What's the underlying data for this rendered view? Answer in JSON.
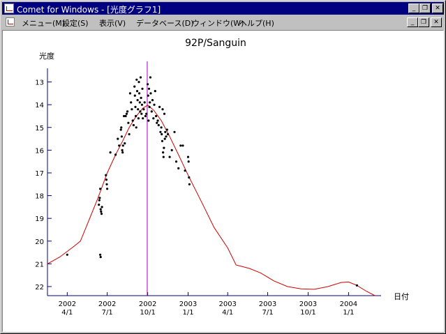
{
  "window": {
    "title": "Comet for Windows - [光度グラフ1]",
    "buttons": {
      "minimize": "_",
      "restore": "❐",
      "close": "✕"
    }
  },
  "menu": {
    "items": [
      {
        "label": "メニュー(M)"
      },
      {
        "label": "設定(S)"
      },
      {
        "label": "表示(V)"
      },
      {
        "label": "データベース(D)"
      },
      {
        "label": "ウィンドウ(W)"
      },
      {
        "label": "ヘルプ(H)"
      }
    ]
  },
  "chart_data": {
    "type": "scatter",
    "title": "92P/Sanguin",
    "ylabel": "光度",
    "xlabel": "日付",
    "x_domain": [
      "2002-02-15",
      "2004-03-15"
    ],
    "ylim": [
      22.4,
      12.4
    ],
    "y_inverted": true,
    "y_ticks": [
      13,
      14,
      15,
      16,
      17,
      18,
      19,
      20,
      21,
      22
    ],
    "x_ticks": [
      {
        "date": "2002-04-01",
        "year": "2002",
        "md": "4/1"
      },
      {
        "date": "2002-07-01",
        "year": "2002",
        "md": "7/1"
      },
      {
        "date": "2002-10-01",
        "year": "2002",
        "md": "10/1"
      },
      {
        "date": "2003-01-01",
        "year": "2003",
        "md": "1/1"
      },
      {
        "date": "2003-04-01",
        "year": "2003",
        "md": "4/1"
      },
      {
        "date": "2003-07-01",
        "year": "2003",
        "md": "7/1"
      },
      {
        "date": "2003-10-01",
        "year": "2003",
        "md": "10/1"
      },
      {
        "date": "2004-01-01",
        "year": "2004",
        "md": "1/1"
      }
    ],
    "perihelion_date": "2002-09-30",
    "predicted_curve": [
      [
        "2002-02-15",
        21.0
      ],
      [
        "2002-03-15",
        20.7
      ],
      [
        "2002-04-15",
        20.25
      ],
      [
        "2002-05-01",
        20.0
      ],
      [
        "2002-05-20",
        19.1
      ],
      [
        "2002-06-10",
        18.1
      ],
      [
        "2002-07-01",
        17.0
      ],
      [
        "2002-07-20",
        16.2
      ],
      [
        "2002-08-05",
        15.6
      ],
      [
        "2002-08-20",
        15.0
      ],
      [
        "2002-09-05",
        14.5
      ],
      [
        "2002-09-20",
        14.15
      ],
      [
        "2002-10-01",
        14.02
      ],
      [
        "2002-10-15",
        14.25
      ],
      [
        "2002-11-01",
        14.7
      ],
      [
        "2002-11-20",
        15.4
      ],
      [
        "2002-12-10",
        16.2
      ],
      [
        "2003-01-01",
        17.1
      ],
      [
        "2003-02-01",
        18.3
      ],
      [
        "2003-03-01",
        19.4
      ],
      [
        "2003-04-01",
        20.3
      ],
      [
        "2003-04-20",
        21.05
      ],
      [
        "2003-05-20",
        21.2
      ],
      [
        "2003-06-15",
        21.4
      ],
      [
        "2003-07-15",
        21.75
      ],
      [
        "2003-08-15",
        22.0
      ],
      [
        "2003-09-15",
        22.1
      ],
      [
        "2003-10-15",
        22.12
      ],
      [
        "2003-11-15",
        22.0
      ],
      [
        "2003-12-15",
        21.82
      ],
      [
        "2004-01-01",
        21.8
      ],
      [
        "2004-01-20",
        21.95
      ],
      [
        "2004-02-10",
        22.2
      ],
      [
        "2004-03-01",
        22.4
      ]
    ],
    "observations": [
      [
        "2002-04-01",
        20.6
      ],
      [
        "2002-06-15",
        20.6
      ],
      [
        "2002-06-16",
        20.7
      ],
      [
        "2002-06-12",
        18.4
      ],
      [
        "2002-06-13",
        18.2
      ],
      [
        "2002-06-14",
        18.1
      ],
      [
        "2002-06-15",
        17.7
      ],
      [
        "2002-06-16",
        18.6
      ],
      [
        "2002-06-17",
        18.7
      ],
      [
        "2002-06-18",
        18.8
      ],
      [
        "2002-06-19",
        18.5
      ],
      [
        "2002-06-28",
        17.1
      ],
      [
        "2002-06-29",
        17.3
      ],
      [
        "2002-06-30",
        17.5
      ],
      [
        "2002-07-01",
        17.7
      ],
      [
        "2002-07-08",
        16.1
      ],
      [
        "2002-07-20",
        16.2
      ],
      [
        "2002-07-25",
        15.5
      ],
      [
        "2002-07-28",
        15.8
      ],
      [
        "2002-08-01",
        15.1
      ],
      [
        "2002-08-02",
        15.0
      ],
      [
        "2002-08-03",
        15.4
      ],
      [
        "2002-08-04",
        16.0
      ],
      [
        "2002-08-05",
        16.1
      ],
      [
        "2002-08-06",
        15.8
      ],
      [
        "2002-08-08",
        14.5
      ],
      [
        "2002-08-10",
        15.7
      ],
      [
        "2002-08-12",
        14.5
      ],
      [
        "2002-08-14",
        14.4
      ],
      [
        "2002-08-16",
        14.3
      ],
      [
        "2002-08-18",
        14.8
      ],
      [
        "2002-08-20",
        15.3
      ],
      [
        "2002-08-22",
        13.5
      ],
      [
        "2002-08-24",
        13.9
      ],
      [
        "2002-08-26",
        14.2
      ],
      [
        "2002-08-28",
        14.7
      ],
      [
        "2002-08-30",
        14.9
      ],
      [
        "2002-09-01",
        13.2
      ],
      [
        "2002-09-02",
        13.6
      ],
      [
        "2002-09-03",
        14.1
      ],
      [
        "2002-09-04",
        14.5
      ],
      [
        "2002-09-05",
        15.0
      ],
      [
        "2002-09-06",
        12.9
      ],
      [
        "2002-09-07",
        13.4
      ],
      [
        "2002-09-08",
        13.8
      ],
      [
        "2002-09-09",
        14.2
      ],
      [
        "2002-09-10",
        14.6
      ],
      [
        "2002-09-11",
        13.0
      ],
      [
        "2002-09-12",
        13.5
      ],
      [
        "2002-09-13",
        13.9
      ],
      [
        "2002-09-14",
        14.3
      ],
      [
        "2002-09-15",
        12.8
      ],
      [
        "2002-09-16",
        13.7
      ],
      [
        "2002-09-17",
        14.4
      ],
      [
        "2002-09-18",
        14.0
      ],
      [
        "2002-09-19",
        13.3
      ],
      [
        "2002-09-20",
        14.6
      ],
      [
        "2002-09-22",
        14.2
      ],
      [
        "2002-09-24",
        13.9
      ],
      [
        "2002-09-26",
        14.5
      ],
      [
        "2002-09-28",
        14.4
      ],
      [
        "2002-10-01",
        13.1
      ],
      [
        "2002-10-02",
        13.6
      ],
      [
        "2002-10-03",
        14.7
      ],
      [
        "2002-10-04",
        13.3
      ],
      [
        "2002-10-05",
        14.1
      ],
      [
        "2002-10-06",
        13.9
      ],
      [
        "2002-10-07",
        12.8
      ],
      [
        "2002-10-08",
        13.5
      ],
      [
        "2002-10-10",
        14.3
      ],
      [
        "2002-10-12",
        13.8
      ],
      [
        "2002-10-14",
        14.6
      ],
      [
        "2002-10-16",
        14.0
      ],
      [
        "2002-10-18",
        13.4
      ],
      [
        "2002-10-20",
        14.5
      ],
      [
        "2002-10-22",
        14.8
      ],
      [
        "2002-10-24",
        14.7
      ],
      [
        "2002-10-26",
        14.9
      ],
      [
        "2002-10-28",
        14.1
      ],
      [
        "2002-10-30",
        15.2
      ],
      [
        "2002-11-01",
        15.0
      ],
      [
        "2002-11-02",
        15.3
      ],
      [
        "2002-11-03",
        15.6
      ],
      [
        "2002-11-04",
        14.2
      ],
      [
        "2002-11-05",
        16.1
      ],
      [
        "2002-11-06",
        16.3
      ],
      [
        "2002-11-07",
        15.9
      ],
      [
        "2002-11-08",
        14.4
      ],
      [
        "2002-11-09",
        15.5
      ],
      [
        "2002-11-10",
        15.2
      ],
      [
        "2002-11-12",
        15.4
      ],
      [
        "2002-11-14",
        15.1
      ],
      [
        "2002-11-16",
        15.3
      ],
      [
        "2002-11-20",
        16.3
      ],
      [
        "2002-11-25",
        16.0
      ],
      [
        "2002-12-01",
        15.2
      ],
      [
        "2002-12-05",
        16.5
      ],
      [
        "2002-12-10",
        16.8
      ],
      [
        "2002-12-15",
        15.8
      ],
      [
        "2002-12-20",
        15.8
      ],
      [
        "2002-12-25",
        16.9
      ],
      [
        "2003-01-01",
        16.3
      ],
      [
        "2003-01-02",
        16.5
      ],
      [
        "2003-01-03",
        17.2
      ],
      [
        "2003-01-04",
        17.5
      ],
      [
        "2004-01-20",
        21.95
      ]
    ]
  }
}
